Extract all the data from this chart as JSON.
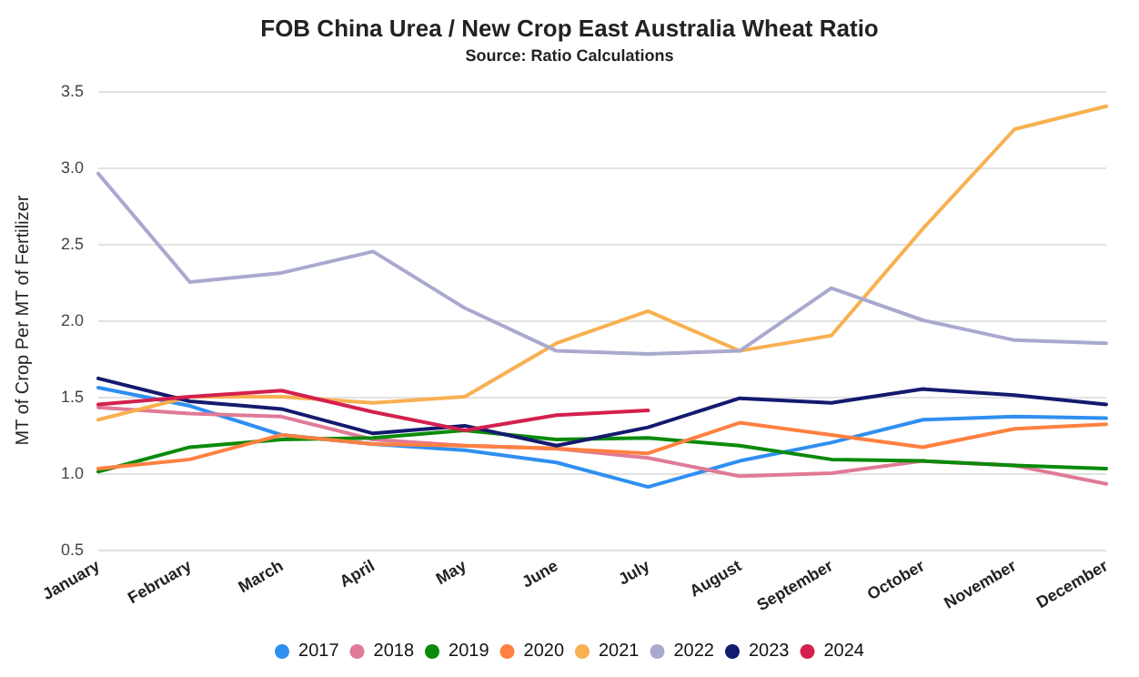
{
  "chart_data": {
    "type": "line",
    "title": "FOB China Urea / New Crop East Australia Wheat Ratio",
    "subtitle": "Source: Ratio Calculations",
    "ylabel": "MT of Crop Per MT of Fertilizer",
    "categories": [
      "January",
      "February",
      "March",
      "April",
      "May",
      "June",
      "July",
      "August",
      "September",
      "October",
      "November",
      "December"
    ],
    "series": [
      {
        "name": "2017",
        "color": "#2f8ff0",
        "values": [
          1.56,
          1.44,
          1.25,
          1.19,
          1.15,
          1.07,
          0.91,
          1.08,
          1.2,
          1.35,
          1.37,
          1.36
        ]
      },
      {
        "name": "2018",
        "color": "#e07a96",
        "values": [
          1.43,
          1.39,
          1.37,
          1.22,
          1.18,
          1.16,
          1.1,
          0.98,
          1.0,
          1.08,
          1.05,
          0.93
        ]
      },
      {
        "name": "2019",
        "color": "#0a8a0a",
        "values": [
          1.01,
          1.17,
          1.22,
          1.23,
          1.28,
          1.22,
          1.23,
          1.18,
          1.09,
          1.08,
          1.05,
          1.03
        ]
      },
      {
        "name": "2020",
        "color": "#ff8040",
        "values": [
          1.03,
          1.09,
          1.25,
          1.19,
          1.18,
          1.16,
          1.13,
          1.33,
          1.25,
          1.17,
          1.29,
          1.32
        ]
      },
      {
        "name": "2021",
        "color": "#f8b050",
        "values": [
          1.35,
          1.5,
          1.5,
          1.46,
          1.5,
          1.85,
          2.06,
          1.8,
          1.9,
          2.6,
          3.25,
          3.4
        ]
      },
      {
        "name": "2022",
        "color": "#a9a9d0",
        "values": [
          2.96,
          2.25,
          2.31,
          2.45,
          2.08,
          1.8,
          1.78,
          1.8,
          2.21,
          2.0,
          1.87,
          1.85
        ]
      },
      {
        "name": "2023",
        "color": "#141a6e",
        "values": [
          1.62,
          1.47,
          1.42,
          1.26,
          1.31,
          1.18,
          1.3,
          1.49,
          1.46,
          1.55,
          1.51,
          1.45
        ]
      },
      {
        "name": "2024",
        "color": "#d4204e",
        "values": [
          1.45,
          1.5,
          1.54,
          1.4,
          1.28,
          1.38,
          1.41,
          null,
          null,
          null,
          null,
          null
        ]
      }
    ],
    "ylim": [
      0.5,
      3.5
    ],
    "yticks": [
      {
        "value": 0.5,
        "label": "0.5"
      },
      {
        "value": 1,
        "label": "1.0"
      },
      {
        "value": 1.5,
        "label": "1.5"
      },
      {
        "value": 2,
        "label": "2.0"
      },
      {
        "value": 2.5,
        "label": "2.5"
      },
      {
        "value": 3,
        "label": "3.0"
      },
      {
        "value": 3.5,
        "label": "3.5"
      }
    ],
    "grid": "y",
    "legend": "bottom",
    "marker": "none",
    "line_style": "solid"
  }
}
